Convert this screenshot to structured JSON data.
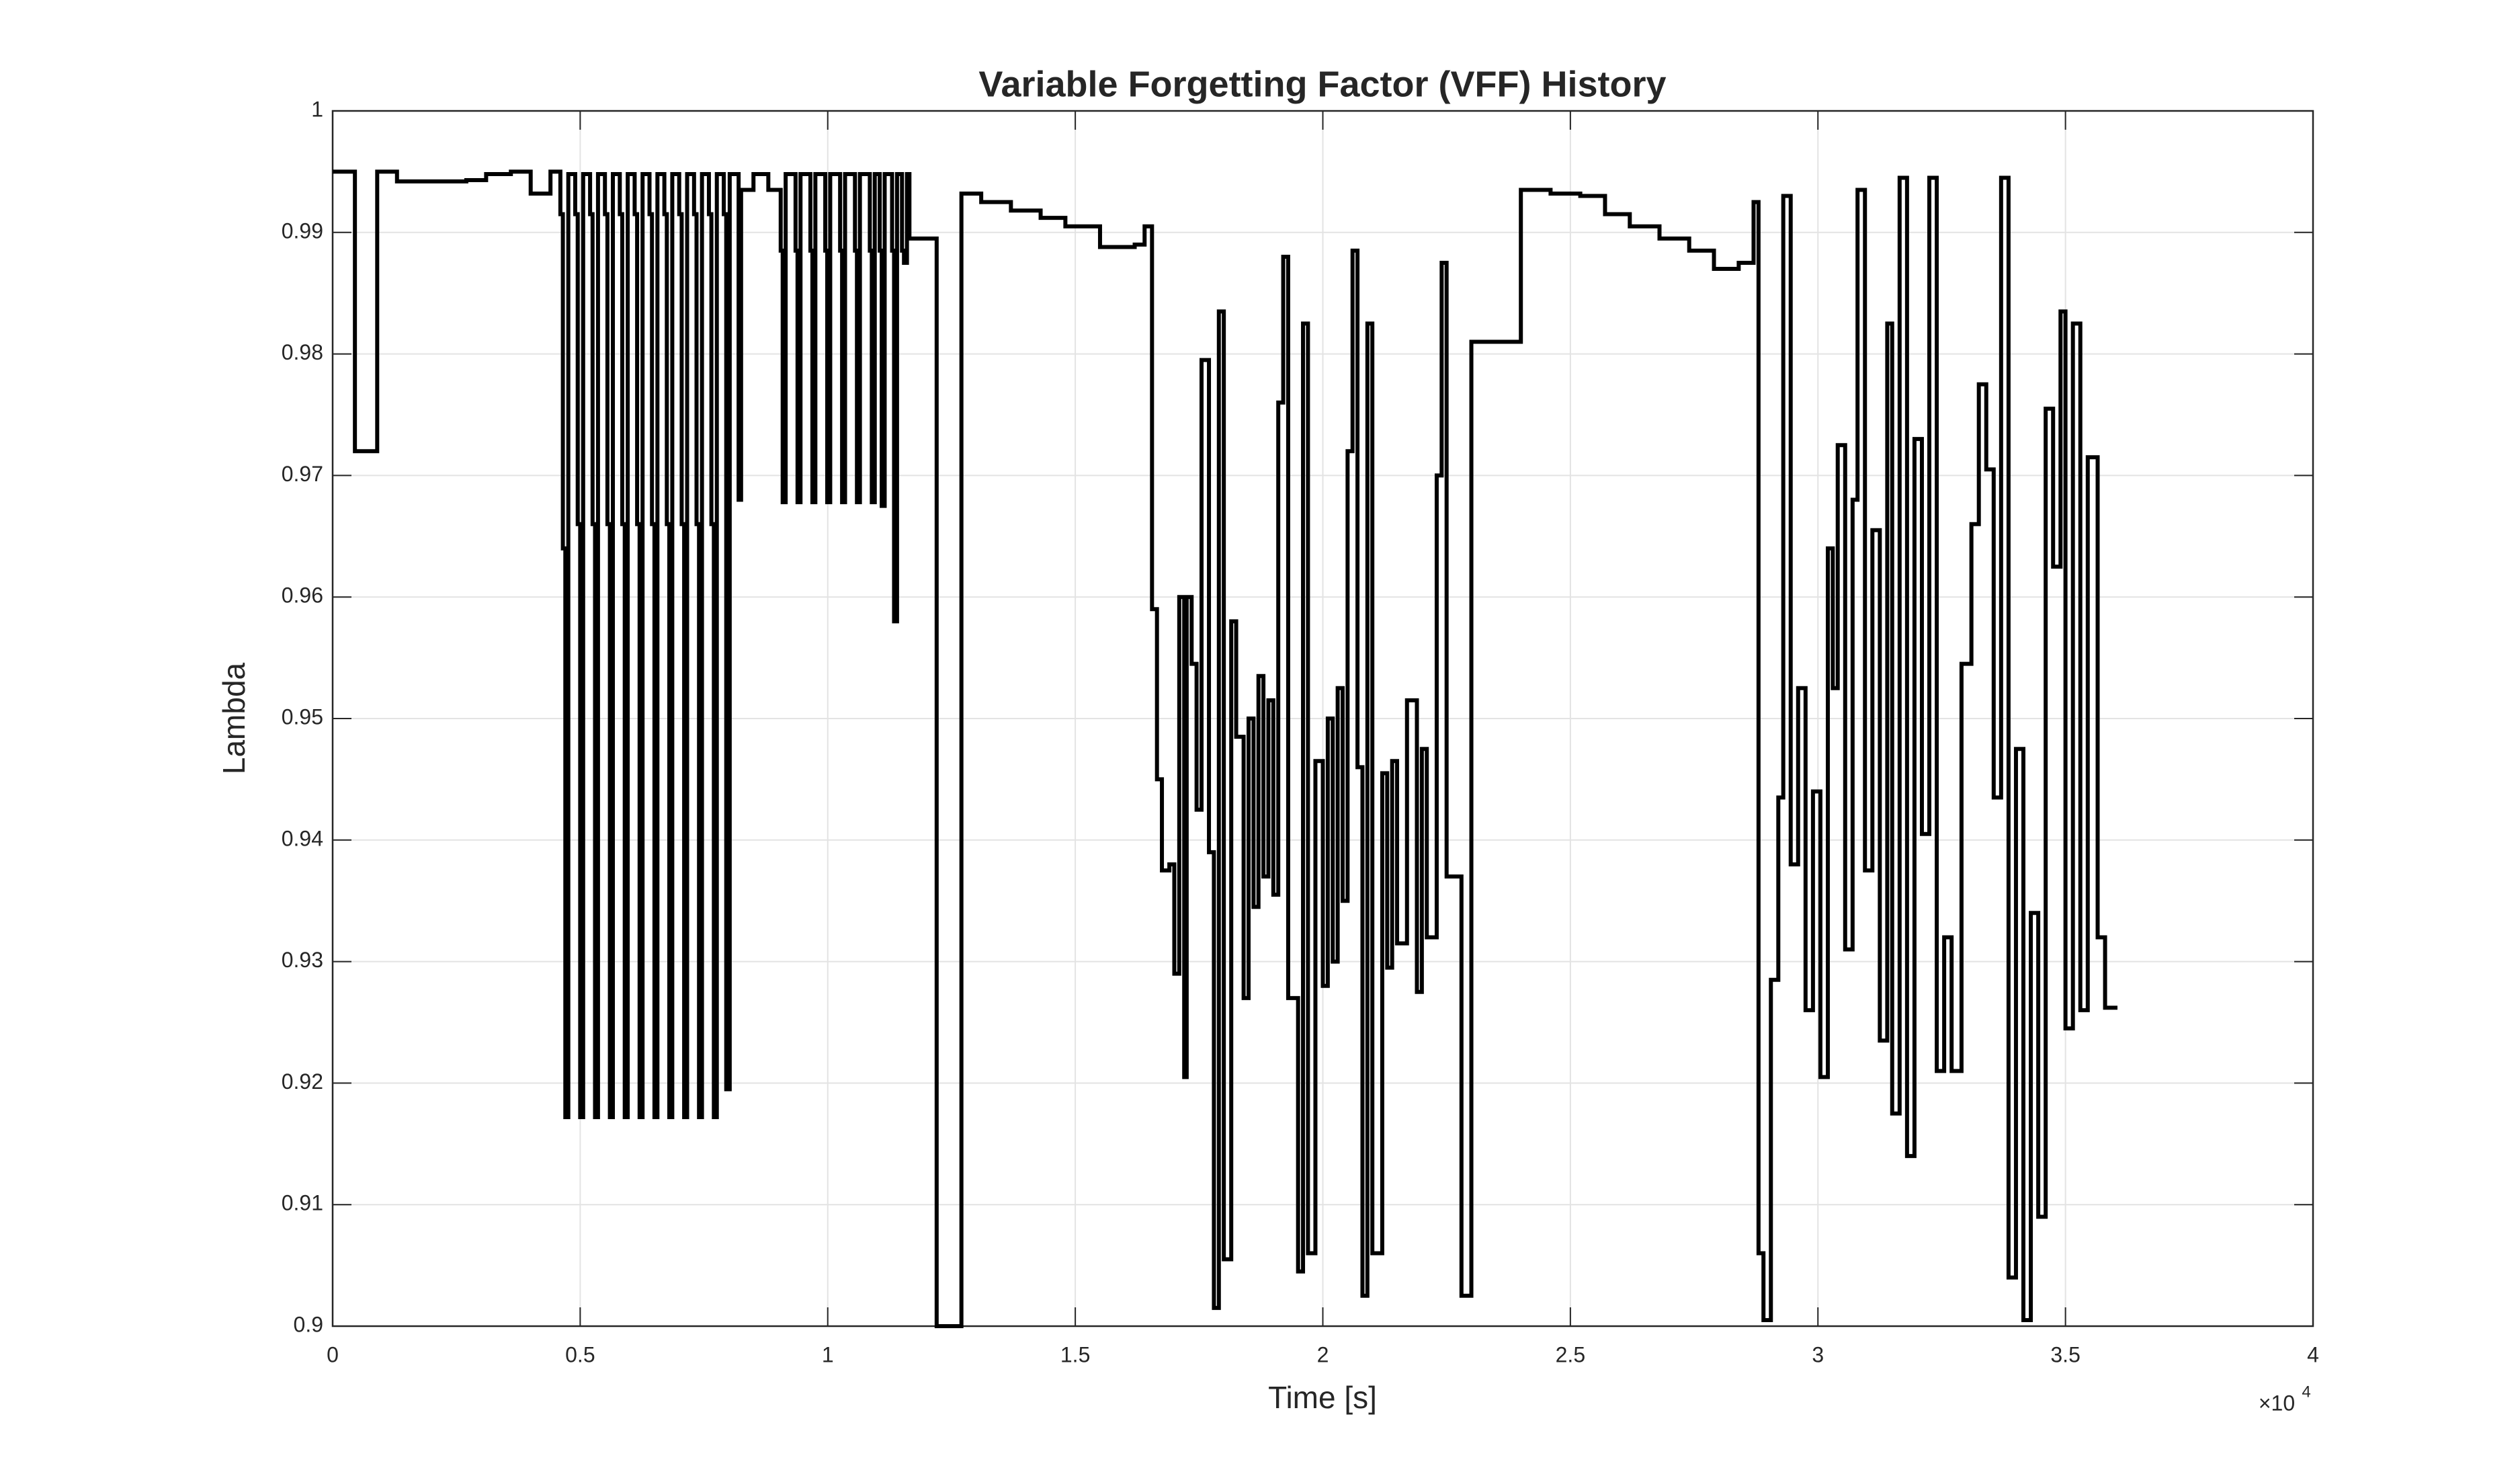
{
  "chart_data": {
    "type": "line",
    "step": true,
    "title": "Variable Forgetting Factor (VFF) History",
    "xlabel": "Time [s]",
    "ylabel": "Lambda",
    "x_exponent": {
      "base": "×10",
      "power": "4"
    },
    "xlim": [
      0,
      4
    ],
    "xticks": [
      0,
      0.5,
      1,
      1.5,
      2,
      2.5,
      3,
      3.5,
      4
    ],
    "ylim": [
      0.9,
      1
    ],
    "yticks": [
      0.9,
      0.91,
      0.92,
      0.93,
      0.94,
      0.95,
      0.96,
      0.97,
      0.98,
      0.99,
      1
    ],
    "grid": true,
    "series": [
      {
        "name": "VFF",
        "color": "#000000",
        "x": [
          0,
          0.045,
          0.09,
          0.13,
          0.27,
          0.31,
          0.36,
          0.4,
          0.44,
          0.46,
          0.465,
          0.47,
          0.476,
          0.49,
          0.495,
          0.5,
          0.506,
          0.52,
          0.525,
          0.53,
          0.536,
          0.55,
          0.555,
          0.56,
          0.566,
          0.58,
          0.585,
          0.59,
          0.596,
          0.61,
          0.615,
          0.62,
          0.626,
          0.64,
          0.645,
          0.65,
          0.656,
          0.67,
          0.675,
          0.68,
          0.686,
          0.7,
          0.705,
          0.71,
          0.716,
          0.73,
          0.735,
          0.74,
          0.746,
          0.76,
          0.765,
          0.77,
          0.776,
          0.79,
          0.795,
          0.802,
          0.82,
          0.825,
          0.85,
          0.88,
          0.905,
          0.909,
          0.915,
          0.935,
          0.939,
          0.945,
          0.965,
          0.969,
          0.975,
          0.995,
          0.999,
          1.005,
          1.025,
          1.029,
          1.035,
          1.055,
          1.059,
          1.065,
          1.085,
          1.089,
          1.095,
          1.105,
          1.109,
          1.115,
          1.13,
          1.134,
          1.14,
          1.15,
          1.154,
          1.16,
          1.165,
          1.22,
          1.27,
          1.31,
          1.37,
          1.43,
          1.48,
          1.55,
          1.62,
          1.64,
          1.655,
          1.665,
          1.675,
          1.69,
          1.7,
          1.71,
          1.72,
          1.725,
          1.735,
          1.745,
          1.755,
          1.77,
          1.78,
          1.79,
          1.8,
          1.815,
          1.825,
          1.84,
          1.85,
          1.86,
          1.87,
          1.88,
          1.89,
          1.9,
          1.91,
          1.92,
          1.93,
          1.95,
          1.96,
          1.97,
          1.985,
          2.0,
          2.01,
          2.02,
          2.03,
          2.04,
          2.05,
          2.06,
          2.07,
          2.08,
          2.09,
          2.1,
          2.12,
          2.13,
          2.14,
          2.15,
          2.17,
          2.19,
          2.2,
          2.21,
          2.23,
          2.24,
          2.25,
          2.28,
          2.3,
          2.36,
          2.4,
          2.46,
          2.52,
          2.57,
          2.62,
          2.68,
          2.74,
          2.79,
          2.84,
          2.87,
          2.88,
          2.89,
          2.905,
          2.92,
          2.93,
          2.945,
          2.96,
          2.975,
          2.99,
          3.005,
          3.02,
          3.03,
          3.04,
          3.055,
          3.07,
          3.08,
          3.095,
          3.11,
          3.125,
          3.14,
          3.15,
          3.165,
          3.18,
          3.195,
          3.21,
          3.225,
          3.24,
          3.255,
          3.27,
          3.29,
          3.31,
          3.325,
          3.34,
          3.355,
          3.37,
          3.385,
          3.4,
          3.415,
          3.43,
          3.445,
          3.46,
          3.475,
          3.49,
          3.5,
          3.515,
          3.53,
          3.545,
          3.565,
          3.58,
          3.605
        ],
        "values": [
          0.995,
          0.972,
          0.995,
          0.9942,
          0.9943,
          0.9948,
          0.995,
          0.9932,
          0.995,
          0.9915,
          0.964,
          0.9172,
          0.9948,
          0.9915,
          0.966,
          0.9172,
          0.9948,
          0.9915,
          0.966,
          0.9172,
          0.9948,
          0.9915,
          0.966,
          0.9172,
          0.9948,
          0.9915,
          0.966,
          0.9172,
          0.9948,
          0.9915,
          0.966,
          0.9172,
          0.9948,
          0.9915,
          0.966,
          0.9172,
          0.9948,
          0.9915,
          0.966,
          0.9172,
          0.9948,
          0.9915,
          0.966,
          0.9172,
          0.9948,
          0.9915,
          0.966,
          0.9172,
          0.9948,
          0.9915,
          0.966,
          0.9172,
          0.9948,
          0.9915,
          0.9195,
          0.9948,
          0.968,
          0.9935,
          0.9948,
          0.9935,
          0.9885,
          0.9678,
          0.9948,
          0.9885,
          0.9678,
          0.9948,
          0.9885,
          0.9678,
          0.9948,
          0.9885,
          0.9678,
          0.9948,
          0.9885,
          0.9678,
          0.9948,
          0.9885,
          0.9678,
          0.9948,
          0.9885,
          0.9678,
          0.9948,
          0.9885,
          0.9675,
          0.9948,
          0.9885,
          0.958,
          0.9948,
          0.9885,
          0.9875,
          0.9948,
          0.9895,
          0.9,
          0.9932,
          0.9925,
          0.9918,
          0.9912,
          0.9905,
          0.9888,
          0.989,
          0.9905,
          0.959,
          0.945,
          0.9375,
          0.938,
          0.929,
          0.96,
          0.9205,
          0.96,
          0.9545,
          0.9425,
          0.9795,
          0.939,
          0.9015,
          0.9835,
          0.9055,
          0.958,
          0.9485,
          0.927,
          0.95,
          0.9345,
          0.9535,
          0.937,
          0.9515,
          0.9355,
          0.976,
          0.988,
          0.927,
          0.9045,
          0.9825,
          0.906,
          0.9465,
          0.928,
          0.95,
          0.93,
          0.9525,
          0.935,
          0.972,
          0.9885,
          0.946,
          0.9025,
          0.9825,
          0.906,
          0.9455,
          0.9295,
          0.9465,
          0.9315,
          0.9515,
          0.9275,
          0.9475,
          0.932,
          0.97,
          0.9875,
          0.937,
          0.9025,
          0.981,
          0.981,
          0.9935,
          0.9932,
          0.993,
          0.9915,
          0.9905,
          0.9895,
          0.9885,
          0.987,
          0.9875,
          0.9925,
          0.906,
          0.9005,
          0.9285,
          0.9435,
          0.993,
          0.938,
          0.9525,
          0.926,
          0.944,
          0.9205,
          0.964,
          0.9525,
          0.9725,
          0.931,
          0.968,
          0.9935,
          0.9375,
          0.9655,
          0.9235,
          0.9825,
          0.9175,
          0.9945,
          0.914,
          0.973,
          0.9405,
          0.9945,
          0.921,
          0.932,
          0.921,
          0.9545,
          0.966,
          0.9775,
          0.9705,
          0.9435,
          0.9945,
          0.904,
          0.9475,
          0.9005,
          0.934,
          0.909,
          0.9755,
          0.9625,
          0.9835,
          0.9245,
          0.9825,
          0.926,
          0.9715,
          0.932,
          0.9262,
          0.9262
        ]
      }
    ]
  }
}
